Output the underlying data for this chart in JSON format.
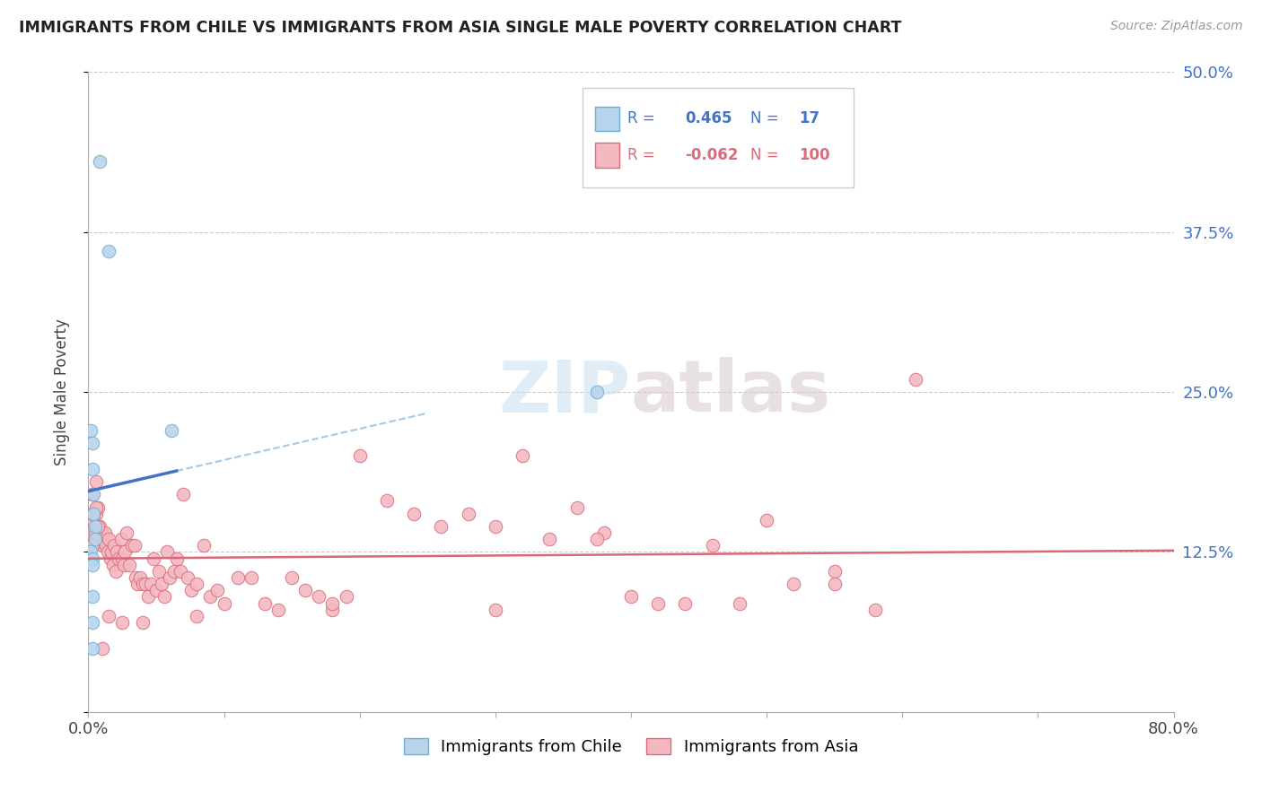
{
  "title": "IMMIGRANTS FROM CHILE VS IMMIGRANTS FROM ASIA SINGLE MALE POVERTY CORRELATION CHART",
  "source": "Source: ZipAtlas.com",
  "ylabel_label": "Single Male Poverty",
  "xlim": [
    0.0,
    0.8
  ],
  "ylim": [
    0.0,
    0.5
  ],
  "ytick_positions": [
    0.0,
    0.125,
    0.25,
    0.375,
    0.5
  ],
  "yticklabels_right": [
    "",
    "12.5%",
    "25.0%",
    "37.5%",
    "50.0%"
  ],
  "chile_color": "#b8d4eb",
  "chile_edge_color": "#6aaed6",
  "asia_color": "#f4b8c1",
  "asia_edge_color": "#d96b7a",
  "chile_R": 0.465,
  "chile_N": 17,
  "asia_R": -0.062,
  "asia_N": 100,
  "trendline_chile_color": "#4472c4",
  "trendline_chile_dash_color": "#a8c8e8",
  "trendline_asia_color": "#d9687a",
  "legend_label_chile": "Immigrants from Chile",
  "legend_label_asia": "Immigrants from Asia",
  "watermark": "ZIPatlas",
  "chile_x": [
    0.008,
    0.015,
    0.002,
    0.003,
    0.003,
    0.004,
    0.004,
    0.005,
    0.005,
    0.002,
    0.003,
    0.003,
    0.061,
    0.003,
    0.003,
    0.375,
    0.003
  ],
  "chile_y": [
    0.43,
    0.36,
    0.22,
    0.21,
    0.19,
    0.17,
    0.155,
    0.145,
    0.135,
    0.125,
    0.12,
    0.115,
    0.22,
    0.09,
    0.07,
    0.25,
    0.05
  ],
  "asia_x": [
    0.003,
    0.004,
    0.005,
    0.006,
    0.007,
    0.008,
    0.009,
    0.01,
    0.01,
    0.012,
    0.013,
    0.014,
    0.015,
    0.016,
    0.017,
    0.018,
    0.019,
    0.02,
    0.021,
    0.022,
    0.024,
    0.025,
    0.026,
    0.027,
    0.028,
    0.03,
    0.032,
    0.034,
    0.035,
    0.036,
    0.038,
    0.04,
    0.042,
    0.044,
    0.046,
    0.048,
    0.05,
    0.052,
    0.054,
    0.056,
    0.058,
    0.06,
    0.063,
    0.065,
    0.068,
    0.07,
    0.073,
    0.076,
    0.08,
    0.085,
    0.09,
    0.095,
    0.1,
    0.11,
    0.12,
    0.13,
    0.14,
    0.15,
    0.16,
    0.17,
    0.18,
    0.19,
    0.2,
    0.22,
    0.24,
    0.26,
    0.28,
    0.3,
    0.32,
    0.34,
    0.36,
    0.38,
    0.4,
    0.42,
    0.44,
    0.46,
    0.48,
    0.5,
    0.52,
    0.55,
    0.58,
    0.61,
    0.375,
    0.55,
    0.3,
    0.18,
    0.08,
    0.04,
    0.025,
    0.015,
    0.01,
    0.006,
    0.003,
    0.003,
    0.003,
    0.003,
    0.004,
    0.005,
    0.006,
    0.007
  ],
  "asia_y": [
    0.17,
    0.15,
    0.14,
    0.155,
    0.16,
    0.145,
    0.135,
    0.14,
    0.13,
    0.14,
    0.13,
    0.125,
    0.135,
    0.12,
    0.125,
    0.115,
    0.13,
    0.11,
    0.125,
    0.12,
    0.135,
    0.12,
    0.115,
    0.125,
    0.14,
    0.115,
    0.13,
    0.13,
    0.105,
    0.1,
    0.105,
    0.1,
    0.1,
    0.09,
    0.1,
    0.12,
    0.095,
    0.11,
    0.1,
    0.09,
    0.125,
    0.105,
    0.11,
    0.12,
    0.11,
    0.17,
    0.105,
    0.095,
    0.1,
    0.13,
    0.09,
    0.095,
    0.085,
    0.105,
    0.105,
    0.085,
    0.08,
    0.105,
    0.095,
    0.09,
    0.08,
    0.09,
    0.2,
    0.165,
    0.155,
    0.145,
    0.155,
    0.145,
    0.2,
    0.135,
    0.16,
    0.14,
    0.09,
    0.085,
    0.085,
    0.13,
    0.085,
    0.15,
    0.1,
    0.11,
    0.08,
    0.26,
    0.135,
    0.1,
    0.08,
    0.085,
    0.075,
    0.07,
    0.07,
    0.075,
    0.05,
    0.18,
    0.14,
    0.13,
    0.155,
    0.17,
    0.155,
    0.14,
    0.16,
    0.145
  ]
}
